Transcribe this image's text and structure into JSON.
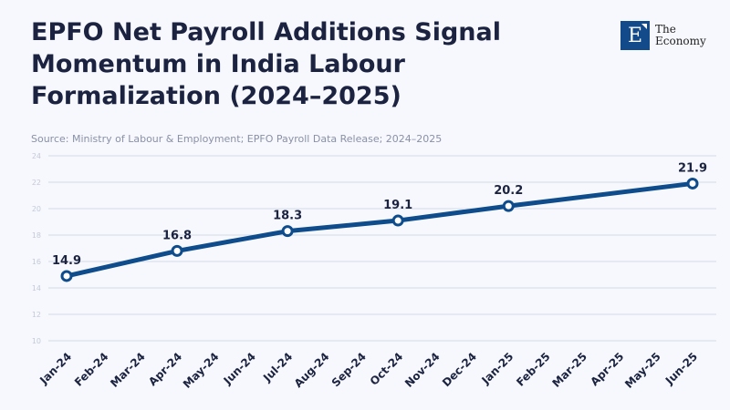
{
  "header": {
    "title": "EPFO Net Payroll Additions Signal Momentum in India Labour Formalization (2024–2025)",
    "source": "Source: Ministry of Labour & Employment; EPFO Payroll Data Release; 2024–2025"
  },
  "logo": {
    "letter": "E",
    "line1": "The",
    "line2": "Economy"
  },
  "chart_data": {
    "type": "line",
    "title": "EPFO Net Payroll Additions Signal Momentum in India Labour Formalization (2024–2025)",
    "categories": [
      "Jan-24",
      "Feb-24",
      "Mar-24",
      "Apr-24",
      "May-24",
      "Jun-24",
      "Jul-24",
      "Aug-24",
      "Sep-24",
      "Oct-24",
      "Nov-24",
      "Dec-24",
      "Jan-25",
      "Feb-25",
      "Mar-25",
      "Apr-25",
      "May-25",
      "Jun-25"
    ],
    "points": [
      {
        "x": "Jan-24",
        "y": 14.9
      },
      {
        "x": "Apr-24",
        "y": 16.8
      },
      {
        "x": "Jul-24",
        "y": 18.3
      },
      {
        "x": "Oct-24",
        "y": 19.1
      },
      {
        "x": "Jan-25",
        "y": 20.2
      },
      {
        "x": "Jun-25",
        "y": 21.9
      }
    ],
    "ylim": [
      10,
      24
    ],
    "yticks": [
      10,
      12,
      14,
      16,
      18,
      20,
      22,
      24
    ],
    "grid": true,
    "line_color": "#0f4c8c"
  }
}
